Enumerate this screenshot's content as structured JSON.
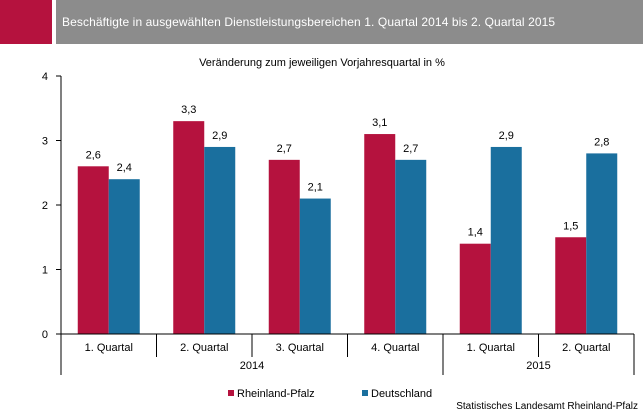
{
  "header": {
    "title": "Beschäftigte in ausgewählten Dienstleistungsbereichen 1. Quartal 2014 bis 2. Quartal 2015",
    "accent_color": "#b5123e",
    "bar_color": "#8c8c8c"
  },
  "chart_data": {
    "type": "bar",
    "title": "",
    "subtitle": "Veränderung zum jeweiligen Vorjahresquartal in %",
    "xlabel": "",
    "ylabel": "",
    "ylim": [
      0,
      4
    ],
    "yticks": [
      "0",
      "1",
      "2",
      "3",
      "4"
    ],
    "grid": false,
    "categories": [
      "1. Quartal",
      "2. Quartal",
      "3. Quartal",
      "4. Quartal",
      "1. Quartal",
      "2. Quartal"
    ],
    "years": [
      {
        "label": "2014",
        "span": 4
      },
      {
        "label": "2015",
        "span": 2
      }
    ],
    "series": [
      {
        "name": "Rheinland-Pfalz",
        "color": "#b5123e",
        "values": [
          2.6,
          3.3,
          2.7,
          3.1,
          1.4,
          1.5
        ],
        "labels": [
          "2,6",
          "3,3",
          "2,7",
          "3,1",
          "1,4",
          "1,5"
        ]
      },
      {
        "name": "Deutschland",
        "color": "#1a6f9e",
        "values": [
          2.4,
          2.9,
          2.1,
          2.7,
          2.9,
          2.8
        ],
        "labels": [
          "2,4",
          "2,9",
          "2,1",
          "2,7",
          "2,9",
          "2,8"
        ]
      }
    ],
    "legend_position": "bottom"
  },
  "footer": {
    "source": "Statistisches Landesamt Rheinland-Pfalz"
  }
}
